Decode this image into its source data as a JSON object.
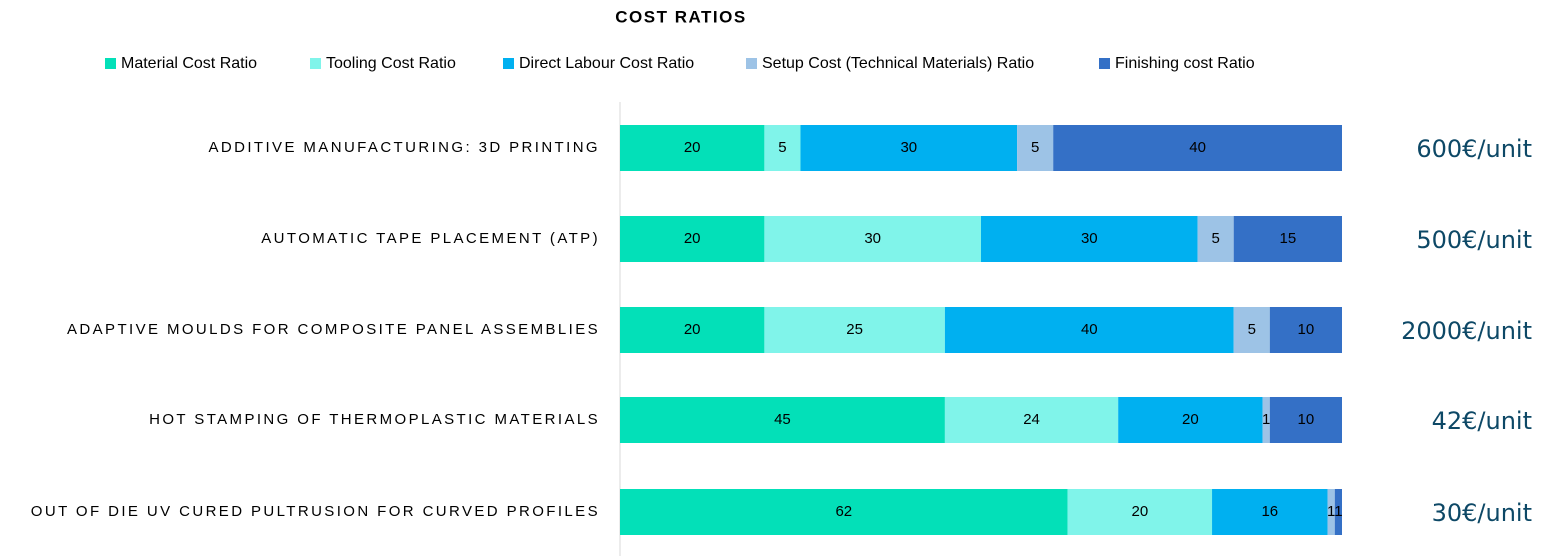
{
  "chart_data": {
    "type": "stacked_barh",
    "title": "COST RATIOS",
    "categories": [
      "ADDITIVE MANUFACTURING: 3D PRINTING",
      "AUTOMATIC TAPE PLACEMENT (ATP)",
      "ADAPTIVE MOULDS FOR COMPOSITE PANEL ASSEMBLIES",
      "HOT STAMPING OF THERMOPLASTIC MATERIALS",
      "OUT OF DIE UV CURED PULTRUSION FOR CURVED PROFILES"
    ],
    "series": [
      {
        "name": "Material Cost Ratio",
        "color": "#03e0b8",
        "values": [
          20,
          20,
          20,
          45,
          62
        ]
      },
      {
        "name": "Tooling Cost Ratio",
        "color": "#80f4ea",
        "values": [
          5,
          30,
          25,
          24,
          20
        ]
      },
      {
        "name": "Direct Labour Cost Ratio",
        "color": "#00b0f0",
        "values": [
          30,
          30,
          40,
          20,
          16
        ]
      },
      {
        "name": "Setup Cost (Technical Materials) Ratio",
        "color": "#9dc3e6",
        "values": [
          5,
          5,
          5,
          1,
          1
        ]
      },
      {
        "name": "Finishing cost Ratio",
        "color": "#3470c6",
        "values": [
          40,
          15,
          10,
          10,
          1
        ]
      }
    ],
    "annotations": [
      "600€/unit",
      "500€/unit",
      "2000€/unit",
      "42€/unit",
      "30€/unit"
    ],
    "xlim": [
      0,
      100
    ],
    "legend": "top"
  }
}
